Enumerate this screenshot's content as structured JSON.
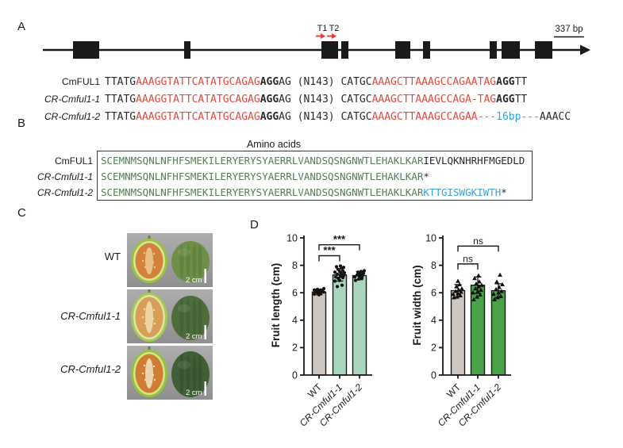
{
  "panel_labels": {
    "a": "A",
    "b": "B",
    "c": "C",
    "d": "D"
  },
  "gene_panel": {
    "scale_bar_label": "337 bp",
    "target_site_labels": [
      "T1",
      "T2"
    ],
    "arrow_color": "#e8392f",
    "exons": [
      [
        92,
        33
      ],
      [
        232,
        8
      ],
      [
        405,
        21
      ],
      [
        430,
        9
      ],
      [
        498,
        19
      ],
      [
        533,
        9
      ],
      [
        617,
        9
      ],
      [
        632,
        23
      ],
      [
        674,
        22
      ]
    ]
  },
  "dna_alignment": {
    "rows": [
      {
        "label": "CmFUL1",
        "italic": false,
        "segments": [
          [
            "TTATG",
            "k"
          ],
          [
            "AAAGGTATTCATATGCAGAG",
            "r"
          ],
          [
            "AGG",
            "b"
          ],
          [
            "AG (N143) CATGC",
            "k"
          ],
          [
            "AAAGCTTAAAGCCAGAATAG",
            "r"
          ],
          [
            "AGG",
            "b"
          ],
          [
            "TT",
            "k"
          ]
        ]
      },
      {
        "label": "CR-Cmful1-1",
        "italic": true,
        "segments": [
          [
            "TTATG",
            "k"
          ],
          [
            "AAAGGTATTCATATGCAGAG",
            "r"
          ],
          [
            "AGG",
            "b"
          ],
          [
            "AG (N143) CATGC",
            "k"
          ],
          [
            "AAAGCTTAAAGCCAGA-TAG",
            "r"
          ],
          [
            "AGG",
            "b"
          ],
          [
            "TT",
            "k"
          ]
        ]
      },
      {
        "label": "CR-Cmful1-2",
        "italic": true,
        "segments": [
          [
            "TTATG",
            "k"
          ],
          [
            "AAAGGTATTCATATGCAGAG",
            "r"
          ],
          [
            "AGG",
            "b"
          ],
          [
            "AG (N143) CATGC",
            "k"
          ],
          [
            "AAAGCTTAAAGCCAGAA",
            "r"
          ],
          [
            "---16bp---",
            "u"
          ],
          [
            "AAACC",
            "k"
          ]
        ]
      }
    ]
  },
  "protein_alignment": {
    "title": "Amino acids",
    "rows": [
      {
        "label": "CmFUL1",
        "italic": false,
        "segments": [
          [
            "SCEMNMSQNLNFHFSMEKILERYERYSYAERRLVANDSQSNGNWTLEHAKLKAR",
            "g"
          ],
          [
            "IEVLQKNHRHFMGEDLD",
            "k"
          ]
        ]
      },
      {
        "label": "CR-Cmful1-1",
        "italic": true,
        "segments": [
          [
            "SCEMNMSQNLNFHFSMEKILERYERYSYAERRLVANDSQSNGNWTLEHAKLKAR",
            "g"
          ],
          [
            "*",
            "k"
          ]
        ]
      },
      {
        "label": "CR-Cmful1-2",
        "italic": true,
        "segments": [
          [
            "SCEMNMSQNLNFHFSMEKILERYERYSYAERRLVANDSQSNGNWTLEHAKLKAR",
            "g"
          ],
          [
            "KTTGISWGKIWTH",
            "u"
          ],
          [
            "*",
            "k"
          ]
        ]
      }
    ]
  },
  "photos": {
    "scale_label": "2 cm",
    "rows": [
      {
        "label": "WT",
        "italic": false,
        "cut": {
          "rind": "#9cc23e",
          "rim": "#d7e795",
          "flesh": "#d2823a",
          "pale": "#ecc98f"
        },
        "whole": {
          "base": "#6f8e49",
          "streak": "#567a38"
        }
      },
      {
        "label": "CR-Cmful1-1",
        "italic": true,
        "cut": {
          "rind": "#a8c855",
          "rim": "#dde8a0",
          "flesh": "#d99e58",
          "pale": "#f0ddb0"
        },
        "whole": {
          "base": "#4f6c3c",
          "streak": "#3e592f"
        }
      },
      {
        "label": "CR-Cmful1-2",
        "italic": true,
        "cut": {
          "rind": "#96c23c",
          "rim": "#d3e68d",
          "flesh": "#cf7d33",
          "pale": "#efe3c4"
        },
        "whole": {
          "base": "#415e37",
          "streak": "#324a2a"
        }
      }
    ]
  },
  "chart_data": [
    {
      "type": "bar",
      "title": "",
      "ylabel": "Fruit length (cm)",
      "xlabel": "",
      "ylim": [
        0,
        10
      ],
      "yticks": [
        0,
        2,
        4,
        6,
        8,
        10
      ],
      "grid": false,
      "categories": [
        {
          "label": "WT",
          "italic": false
        },
        {
          "label": "CR-Cmful1-1",
          "italic": true
        },
        {
          "label": "CR-Cmful1-2",
          "italic": true
        }
      ],
      "values": [
        6.05,
        7.3,
        7.25
      ],
      "errors": [
        0.2,
        0.45,
        0.3
      ],
      "bar_colors": [
        "#cfc7bf",
        "#a9d7bc",
        "#a9d7bc"
      ],
      "marker": "circle",
      "points": [
        [
          [
            -6,
            5.9
          ],
          [
            -2,
            6.0
          ],
          [
            2,
            5.95
          ],
          [
            6,
            6.05
          ],
          [
            -4,
            6.1
          ],
          [
            0,
            6.15
          ],
          [
            4,
            6.1
          ],
          [
            -6,
            6.2
          ],
          [
            -2,
            6.25
          ],
          [
            2,
            6.2
          ],
          [
            6,
            6.3
          ],
          [
            0,
            5.85
          ]
        ],
        [
          [
            -3,
            6.45
          ],
          [
            3,
            6.55
          ],
          [
            -6,
            6.85
          ],
          [
            0,
            6.9
          ],
          [
            -2,
            7.05
          ],
          [
            4,
            7.1
          ],
          [
            -5,
            7.15
          ],
          [
            1,
            7.2
          ],
          [
            5,
            7.25
          ],
          [
            -3,
            7.35
          ],
          [
            2,
            7.4
          ],
          [
            6,
            7.45
          ],
          [
            -6,
            7.5
          ],
          [
            0,
            7.55
          ],
          [
            4,
            7.6
          ],
          [
            -2,
            7.7
          ],
          [
            2,
            7.8
          ],
          [
            -4,
            7.9
          ],
          [
            1,
            7.95
          ],
          [
            5,
            7.85
          ]
        ],
        [
          [
            -5,
            6.9
          ],
          [
            -1,
            7.0
          ],
          [
            3,
            7.05
          ],
          [
            -6,
            7.15
          ],
          [
            0,
            7.2
          ],
          [
            4,
            7.25
          ],
          [
            -3,
            7.3
          ],
          [
            1,
            7.35
          ],
          [
            5,
            7.4
          ],
          [
            -2,
            7.5
          ],
          [
            2,
            7.55
          ],
          [
            6,
            7.6
          ]
        ]
      ],
      "significance": [
        {
          "from": 0,
          "to": 1,
          "label": "***",
          "y": 8.7
        },
        {
          "from": 0,
          "to": 2,
          "label": "***",
          "y": 9.5
        }
      ]
    },
    {
      "type": "bar",
      "title": "",
      "ylabel": "Fruit width (cm)",
      "xlabel": "",
      "ylim": [
        0,
        10
      ],
      "yticks": [
        0,
        2,
        4,
        6,
        8,
        10
      ],
      "grid": false,
      "categories": [
        {
          "label": "WT",
          "italic": false
        },
        {
          "label": "CR-Cmful1-1",
          "italic": true
        },
        {
          "label": "CR-Cmful1-2",
          "italic": true
        }
      ],
      "values": [
        6.15,
        6.55,
        6.15
      ],
      "errors": [
        0.45,
        0.6,
        0.5
      ],
      "bar_colors": [
        "#cfc7bf",
        "#4aa348",
        "#4aa348"
      ],
      "marker": "triangle",
      "points": [
        [
          [
            -5,
            5.65
          ],
          [
            -1,
            5.7
          ],
          [
            3,
            5.8
          ],
          [
            -6,
            5.9
          ],
          [
            0,
            5.95
          ],
          [
            4,
            6.05
          ],
          [
            -3,
            6.1
          ],
          [
            1,
            6.2
          ],
          [
            5,
            6.3
          ],
          [
            -2,
            6.45
          ],
          [
            2,
            6.6
          ],
          [
            0,
            6.85
          ]
        ],
        [
          [
            -5,
            5.5
          ],
          [
            -1,
            5.7
          ],
          [
            3,
            5.85
          ],
          [
            -6,
            6.0
          ],
          [
            0,
            6.1
          ],
          [
            4,
            6.2
          ],
          [
            -3,
            6.3
          ],
          [
            1,
            6.45
          ],
          [
            5,
            6.55
          ],
          [
            -2,
            6.65
          ],
          [
            2,
            6.8
          ],
          [
            -4,
            7.05
          ],
          [
            1,
            7.25
          ]
        ],
        [
          [
            -5,
            5.5
          ],
          [
            -1,
            5.65
          ],
          [
            3,
            5.75
          ],
          [
            -6,
            5.9
          ],
          [
            0,
            6.0
          ],
          [
            4,
            6.1
          ],
          [
            -3,
            6.25
          ],
          [
            1,
            6.4
          ],
          [
            5,
            6.6
          ],
          [
            -2,
            6.8
          ],
          [
            2,
            7.3
          ]
        ]
      ],
      "significance": [
        {
          "from": 0,
          "to": 1,
          "label": "ns",
          "y": 8.1
        },
        {
          "from": 0,
          "to": 2,
          "label": "ns",
          "y": 9.4
        }
      ]
    }
  ],
  "colors": {
    "sequence_red": "#e2493d",
    "sequence_blue": "#35a3dc",
    "sequence_green": "#567d57",
    "sequence_black": "#2b2a2a",
    "diagram_black": "#1a1a1a"
  }
}
